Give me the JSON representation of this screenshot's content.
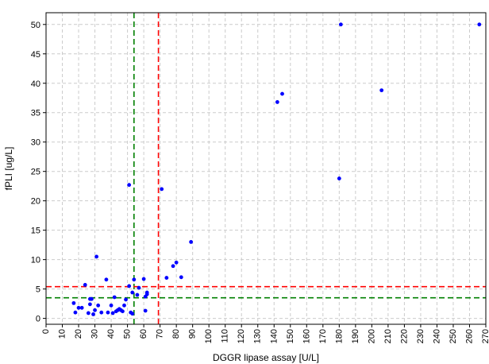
{
  "chart_data": {
    "type": "scatter",
    "xlabel": "DGGR lipase assay [U/L]",
    "ylabel": "fPLI [ug/L]",
    "xlim": [
      0,
      270
    ],
    "ylim": [
      -1,
      52
    ],
    "xticks": [
      0,
      10,
      20,
      30,
      40,
      50,
      60,
      70,
      80,
      90,
      100,
      110,
      120,
      130,
      140,
      150,
      160,
      170,
      180,
      190,
      200,
      210,
      220,
      230,
      240,
      250,
      260,
      270
    ],
    "yticks": [
      0,
      5,
      10,
      15,
      20,
      25,
      30,
      35,
      40,
      45,
      50
    ],
    "grid": true,
    "point_color": "#0000ff",
    "reference_lines": [
      {
        "orientation": "vertical",
        "value": 54,
        "color": "#008000",
        "style": "dashed"
      },
      {
        "orientation": "vertical",
        "value": 69,
        "color": "#ff0000",
        "style": "dashed"
      },
      {
        "orientation": "horizontal",
        "value": 5.4,
        "color": "#ff0000",
        "style": "dashed"
      },
      {
        "orientation": "horizontal",
        "value": 3.5,
        "color": "#008000",
        "style": "dashed"
      }
    ],
    "points": [
      {
        "x": 17,
        "y": 2.6
      },
      {
        "x": 18,
        "y": 1.0
      },
      {
        "x": 20,
        "y": 1.8
      },
      {
        "x": 22,
        "y": 1.8
      },
      {
        "x": 24,
        "y": 5.7
      },
      {
        "x": 26,
        "y": 0.9
      },
      {
        "x": 27,
        "y": 3.3
      },
      {
        "x": 27,
        "y": 2.4
      },
      {
        "x": 28,
        "y": 3.3
      },
      {
        "x": 29,
        "y": 0.7
      },
      {
        "x": 30,
        "y": 1.4
      },
      {
        "x": 31,
        "y": 10.5
      },
      {
        "x": 32,
        "y": 2.2
      },
      {
        "x": 34,
        "y": 1.0
      },
      {
        "x": 37,
        "y": 6.6
      },
      {
        "x": 38,
        "y": 1.0
      },
      {
        "x": 40,
        "y": 2.2
      },
      {
        "x": 41,
        "y": 0.9
      },
      {
        "x": 42,
        "y": 3.6
      },
      {
        "x": 43,
        "y": 1.2
      },
      {
        "x": 44,
        "y": 1.4
      },
      {
        "x": 45,
        "y": 1.6
      },
      {
        "x": 46,
        "y": 1.4
      },
      {
        "x": 47,
        "y": 1.2
      },
      {
        "x": 48,
        "y": 2.2
      },
      {
        "x": 49,
        "y": 3.2
      },
      {
        "x": 51,
        "y": 22.7
      },
      {
        "x": 51,
        "y": 5.5
      },
      {
        "x": 52,
        "y": 1.0
      },
      {
        "x": 53,
        "y": 0.8
      },
      {
        "x": 53,
        "y": 4.4
      },
      {
        "x": 54,
        "y": 6.6
      },
      {
        "x": 56,
        "y": 4.0
      },
      {
        "x": 57,
        "y": 5.2
      },
      {
        "x": 60,
        "y": 6.7
      },
      {
        "x": 61,
        "y": 3.7
      },
      {
        "x": 61,
        "y": 1.3
      },
      {
        "x": 62,
        "y": 4.1
      },
      {
        "x": 62,
        "y": 4.4
      },
      {
        "x": 71,
        "y": 22.0
      },
      {
        "x": 74,
        "y": 6.9
      },
      {
        "x": 78,
        "y": 8.9
      },
      {
        "x": 80,
        "y": 9.5
      },
      {
        "x": 83,
        "y": 7.0
      },
      {
        "x": 89,
        "y": 13.0
      },
      {
        "x": 142,
        "y": 36.8
      },
      {
        "x": 145,
        "y": 38.2
      },
      {
        "x": 180,
        "y": 23.8
      },
      {
        "x": 181,
        "y": 50.0
      },
      {
        "x": 206,
        "y": 38.8
      },
      {
        "x": 266,
        "y": 50.0
      }
    ]
  }
}
